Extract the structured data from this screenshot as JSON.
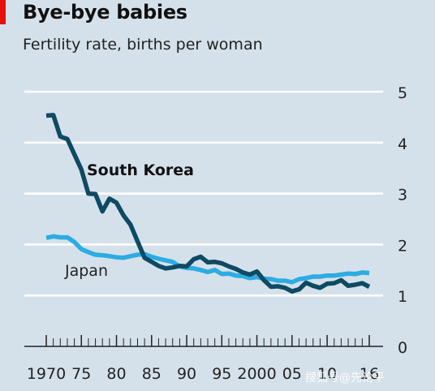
{
  "header": {
    "title": "Bye-bye babies",
    "subtitle": "Fertility rate, births per woman"
  },
  "chart_data": {
    "type": "line",
    "title": "Bye-bye babies",
    "subtitle": "Fertility rate, births per woman",
    "xlabel": "",
    "ylabel": "",
    "xlim": [
      1970,
      2016
    ],
    "ylim": [
      0,
      5
    ],
    "x_ticks": [
      1970,
      1975,
      1980,
      1985,
      1990,
      1995,
      2000,
      2005,
      2010,
      2016
    ],
    "x_tick_labels": [
      "1970",
      "75",
      "80",
      "85",
      "90",
      "95",
      "2000",
      "05",
      "10",
      "16"
    ],
    "y_ticks": [
      0,
      1,
      2,
      3,
      4,
      5
    ],
    "y_tick_labels": [
      "0",
      "1",
      "2",
      "3",
      "4",
      "5"
    ],
    "grid": true,
    "y_axis_side": "right",
    "x": [
      1970,
      1971,
      1972,
      1973,
      1974,
      1975,
      1976,
      1977,
      1978,
      1979,
      1980,
      1981,
      1982,
      1983,
      1984,
      1985,
      1986,
      1987,
      1988,
      1989,
      1990,
      1991,
      1992,
      1993,
      1994,
      1995,
      1996,
      1997,
      1998,
      1999,
      2000,
      2001,
      2002,
      2003,
      2004,
      2005,
      2006,
      2007,
      2008,
      2009,
      2010,
      2011,
      2012,
      2013,
      2014,
      2015,
      2016
    ],
    "series": [
      {
        "name": "South Korea",
        "color": "#0d4a63",
        "values": [
          4.53,
          4.54,
          4.12,
          4.07,
          3.77,
          3.47,
          3.0,
          2.99,
          2.65,
          2.9,
          2.82,
          2.57,
          2.39,
          2.06,
          1.74,
          1.66,
          1.58,
          1.53,
          1.55,
          1.58,
          1.57,
          1.71,
          1.76,
          1.65,
          1.66,
          1.63,
          1.57,
          1.52,
          1.45,
          1.41,
          1.47,
          1.3,
          1.17,
          1.18,
          1.15,
          1.08,
          1.12,
          1.25,
          1.19,
          1.15,
          1.23,
          1.24,
          1.3,
          1.19,
          1.21,
          1.24,
          1.17
        ]
      },
      {
        "name": "Japan",
        "color": "#2cace2",
        "values": [
          2.13,
          2.16,
          2.14,
          2.14,
          2.05,
          1.91,
          1.85,
          1.8,
          1.79,
          1.77,
          1.75,
          1.74,
          1.77,
          1.8,
          1.81,
          1.76,
          1.72,
          1.69,
          1.66,
          1.57,
          1.54,
          1.53,
          1.5,
          1.46,
          1.5,
          1.42,
          1.43,
          1.39,
          1.38,
          1.34,
          1.36,
          1.33,
          1.32,
          1.29,
          1.29,
          1.26,
          1.32,
          1.34,
          1.37,
          1.37,
          1.39,
          1.39,
          1.41,
          1.43,
          1.42,
          1.45,
          1.44
        ]
      }
    ]
  },
  "watermark": "搜狐号@先论平"
}
